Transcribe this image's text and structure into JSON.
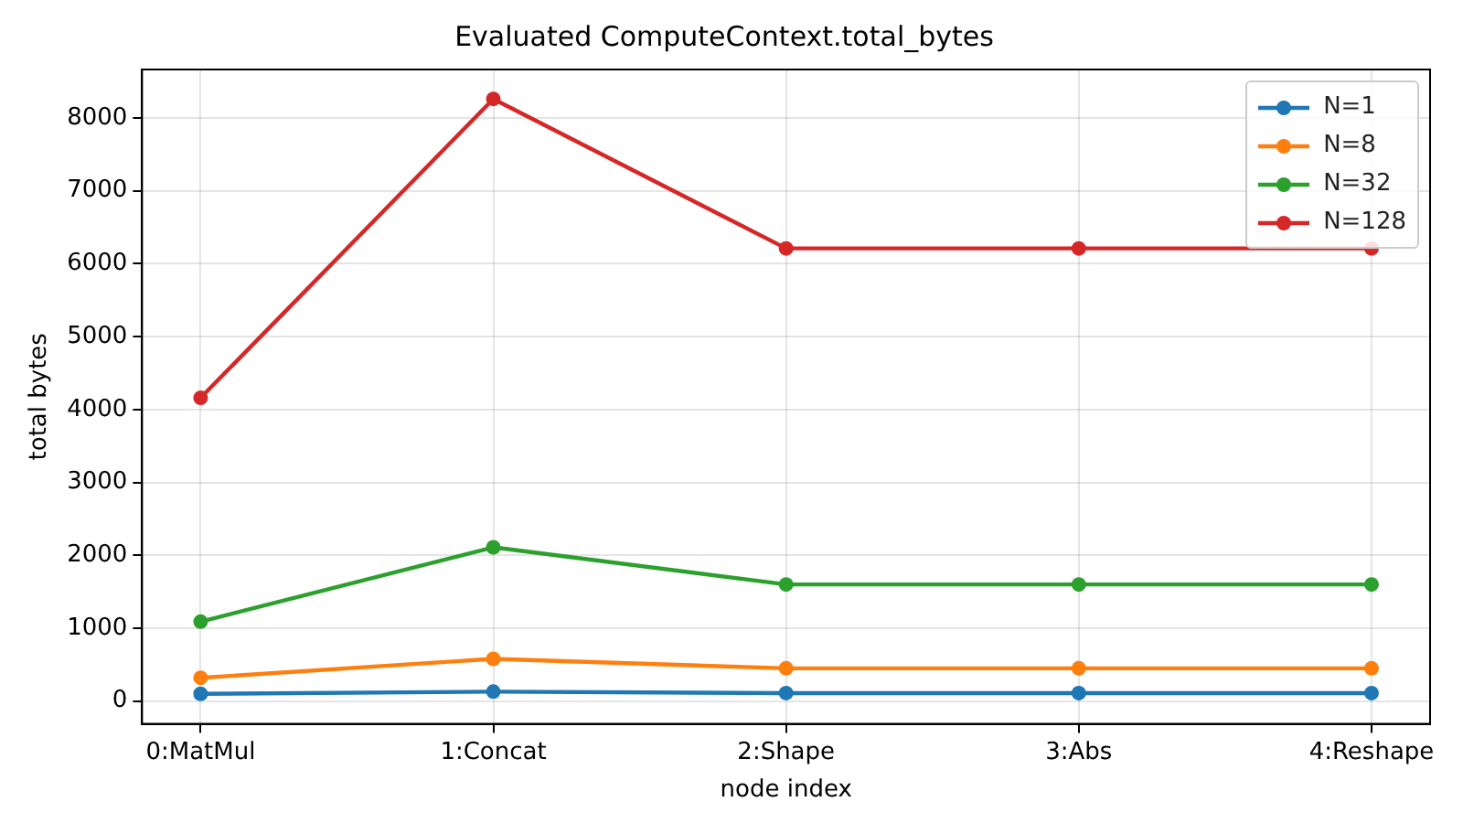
{
  "chart_data": {
    "type": "line",
    "title": "Evaluated ComputeContext.total_bytes",
    "xlabel": "node index",
    "ylabel": "total bytes",
    "categories": [
      "0:MatMul",
      "1:Concat",
      "2:Shape",
      "3:Abs",
      "4:Reshape"
    ],
    "series": [
      {
        "name": "N=1",
        "color": "#1f77b4",
        "values": [
          100,
          130,
          110,
          110,
          110
        ]
      },
      {
        "name": "N=8",
        "color": "#ff7f0e",
        "values": [
          320,
          580,
          450,
          450,
          450
        ]
      },
      {
        "name": "N=32",
        "color": "#2ca02c",
        "values": [
          1090,
          2110,
          1600,
          1600,
          1600
        ]
      },
      {
        "name": "N=128",
        "color": "#d62728",
        "values": [
          4160,
          8260,
          6210,
          6210,
          6210
        ]
      }
    ],
    "ylim": [
      -312,
      8664
    ],
    "yticks": [
      0,
      1000,
      2000,
      3000,
      4000,
      5000,
      6000,
      7000,
      8000
    ],
    "grid": true,
    "legend": "top right",
    "marker": "circle",
    "line_style": "solid"
  }
}
